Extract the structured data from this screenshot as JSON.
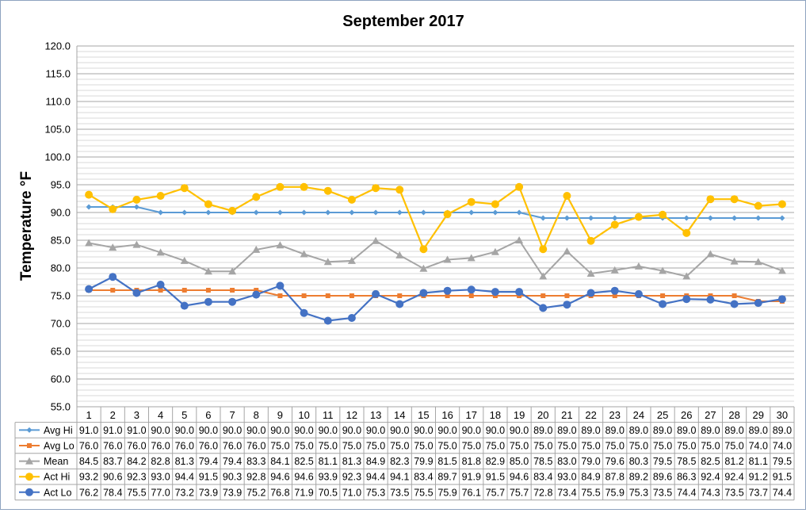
{
  "chart_data": {
    "type": "line",
    "title": "September 2017",
    "ylabel": "Temperature °F",
    "xlabel": "",
    "ylim": [
      55.0,
      120.0
    ],
    "ystep": 5,
    "yticks": [
      "55.0",
      "60.0",
      "65.0",
      "70.0",
      "75.0",
      "80.0",
      "85.0",
      "90.0",
      "95.0",
      "100.0",
      "105.0",
      "110.0",
      "115.0",
      "120.0"
    ],
    "grid": true,
    "legend": "data-table",
    "categories": [
      "1",
      "2",
      "3",
      "4",
      "5",
      "6",
      "7",
      "8",
      "9",
      "10",
      "11",
      "12",
      "13",
      "14",
      "15",
      "16",
      "17",
      "18",
      "19",
      "20",
      "21",
      "22",
      "23",
      "24",
      "25",
      "26",
      "27",
      "28",
      "29",
      "30"
    ],
    "series": [
      {
        "name": "Avg Hi",
        "color": "#5b9bd5",
        "marker": "diamond",
        "values": [
          91.0,
          91.0,
          91.0,
          90.0,
          90.0,
          90.0,
          90.0,
          90.0,
          90.0,
          90.0,
          90.0,
          90.0,
          90.0,
          90.0,
          90.0,
          90.0,
          90.0,
          90.0,
          90.0,
          89.0,
          89.0,
          89.0,
          89.0,
          89.0,
          89.0,
          89.0,
          89.0,
          89.0,
          89.0,
          89.0
        ],
        "labels": [
          "91.0",
          "91.0",
          "91.0",
          "90.0",
          "90.0",
          "90.0",
          "90.0",
          "90.0",
          "90.0",
          "90.0",
          "90.0",
          "90.0",
          "90.0",
          "90.0",
          "90.0",
          "90.0",
          "90.0",
          "90.0",
          "90.0",
          "89.0",
          "89.0",
          "89.0",
          "89.0",
          "89.0",
          "89.0",
          "89.0",
          "89.0",
          "89.0",
          "89.0",
          "89.0"
        ]
      },
      {
        "name": "Avg Lo",
        "color": "#ed7d31",
        "marker": "square",
        "values": [
          76.0,
          76.0,
          76.0,
          76.0,
          76.0,
          76.0,
          76.0,
          76.0,
          75.0,
          75.0,
          75.0,
          75.0,
          75.0,
          75.0,
          75.0,
          75.0,
          75.0,
          75.0,
          75.0,
          75.0,
          75.0,
          75.0,
          75.0,
          75.0,
          75.0,
          75.0,
          75.0,
          75.0,
          74.0,
          74.0
        ],
        "labels": [
          "76.0",
          "76.0",
          "76.0",
          "76.0",
          "76.0",
          "76.0",
          "76.0",
          "76.0",
          "75.0",
          "75.0",
          "75.0",
          "75.0",
          "75.0",
          "75.0",
          "75.0",
          "75.0",
          "75.0",
          "75.0",
          "75.0",
          "75.0",
          "75.0",
          "75.0",
          "75.0",
          "75.0",
          "75.0",
          "75.0",
          "75.0",
          "75.0",
          "74.0",
          "74.0"
        ]
      },
      {
        "name": "Mean",
        "color": "#a5a5a5",
        "marker": "triangle",
        "values": [
          84.5,
          83.7,
          84.2,
          82.8,
          81.3,
          79.4,
          79.4,
          83.3,
          84.1,
          82.5,
          81.1,
          81.3,
          84.9,
          82.3,
          79.9,
          81.5,
          81.8,
          82.9,
          85.0,
          78.5,
          83.0,
          79.0,
          79.6,
          80.3,
          79.5,
          78.5,
          82.5,
          81.2,
          81.1,
          79.5
        ],
        "labels": [
          "84.5",
          "83.7",
          "84.2",
          "82.8",
          "81.3",
          "79.4",
          "79.4",
          "83.3",
          "84.1",
          "82.5",
          "81.1",
          "81.3",
          "84.9",
          "82.3",
          "79.9",
          "81.5",
          "81.8",
          "82.9",
          "85.0",
          "78.5",
          "83.0",
          "79.0",
          "79.6",
          "80.3",
          "79.5",
          "78.5",
          "82.5",
          "81.2",
          "81.1",
          "79.5"
        ]
      },
      {
        "name": "Act Hi",
        "color": "#ffc000",
        "marker": "circle",
        "values": [
          93.2,
          90.6,
          92.3,
          93.0,
          94.4,
          91.5,
          90.3,
          92.8,
          94.6,
          94.6,
          93.9,
          92.3,
          94.4,
          94.1,
          83.4,
          89.7,
          91.9,
          91.5,
          94.6,
          83.4,
          93.0,
          84.9,
          87.8,
          89.2,
          89.6,
          86.3,
          92.4,
          92.4,
          91.2,
          91.5
        ],
        "labels": [
          "93.2",
          "90.6",
          "92.3",
          "93.0",
          "94.4",
          "91.5",
          "90.3",
          "92.8",
          "94.6",
          "94.6",
          "93.9",
          "92.3",
          "94.4",
          "94.1",
          "83.4",
          "89.7",
          "91.9",
          "91.5",
          "94.6",
          "83.4",
          "93.0",
          "84.9",
          "87.8",
          "89.2",
          "89.6",
          "86.3",
          "92.4",
          "92.4",
          "91.2",
          "91.5"
        ]
      },
      {
        "name": "Act Lo",
        "color": "#4472c4",
        "marker": "circle",
        "values": [
          76.2,
          78.4,
          75.5,
          77.0,
          73.2,
          73.9,
          73.9,
          75.2,
          76.8,
          71.9,
          70.5,
          71.0,
          75.3,
          73.5,
          75.5,
          75.9,
          76.1,
          75.7,
          75.7,
          72.8,
          73.4,
          75.5,
          75.9,
          75.3,
          73.5,
          74.4,
          74.3,
          73.5,
          73.7,
          74.4
        ],
        "labels": [
          "76.2",
          "78.4",
          "75.5",
          "77.0",
          "73.2",
          "73.9",
          "73.9",
          "75.2",
          "76.8",
          "71.9",
          "70.5",
          "71.0",
          "75.3",
          "73.5",
          "75.5",
          "75.9",
          "76.1",
          "75.7",
          "75.7",
          "72.8",
          "73.4",
          "75.5",
          "75.9",
          "75.3",
          "73.5",
          "74.4",
          "74.3",
          "73.5",
          "73.7",
          "74.4"
        ]
      }
    ]
  }
}
